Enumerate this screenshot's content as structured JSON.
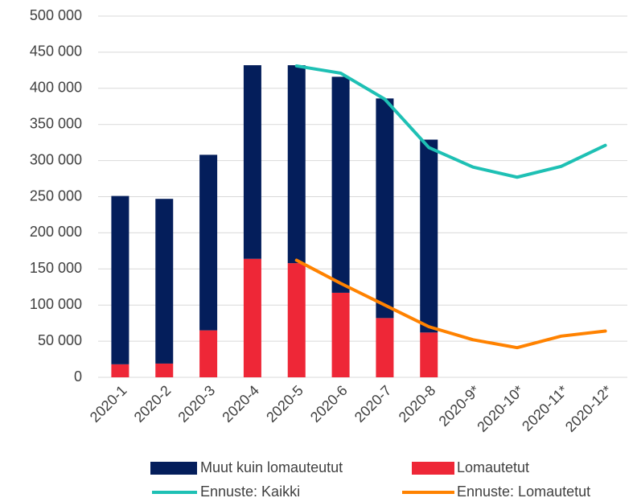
{
  "chart_data": {
    "type": "bar",
    "categories": [
      "2020-1",
      "2020-2",
      "2020-3",
      "2020-4",
      "2020-5",
      "2020-6",
      "2020-7",
      "2020-8",
      "2020-9*",
      "2020-10*",
      "2020-11*",
      "2020-12*"
    ],
    "series": [
      {
        "name": "Lomautetut",
        "type": "bar",
        "color": "#ee2737",
        "values": [
          18000,
          19000,
          65000,
          164000,
          158000,
          117000,
          82000,
          62000,
          null,
          null,
          null,
          null
        ]
      },
      {
        "name": "Muut kuin lomauteutut",
        "type": "bar",
        "color": "#041e5b",
        "values": [
          233000,
          228000,
          243000,
          268000,
          274000,
          299000,
          304000,
          267000,
          null,
          null,
          null,
          null
        ]
      },
      {
        "name": "Ennuste: Kaikki",
        "type": "line",
        "color": "#1ec0b4",
        "values": [
          null,
          null,
          null,
          null,
          431000,
          421000,
          385000,
          318000,
          291000,
          277000,
          292000,
          321000
        ]
      },
      {
        "name": "Ennuste: Lomautetut",
        "type": "line",
        "color": "#ff8200",
        "values": [
          null,
          null,
          null,
          null,
          162000,
          130000,
          100000,
          70000,
          52000,
          41000,
          57000,
          64000
        ]
      }
    ],
    "ylim": [
      0,
      500000
    ],
    "yticks": [
      0,
      {
        "value": 50000,
        "label": "50 000"
      },
      {
        "value": 100000,
        "label": "100 000"
      },
      {
        "value": 150000,
        "label": "150 000"
      },
      {
        "value": 200000,
        "label": "200 000"
      },
      {
        "value": 250000,
        "label": "250 000"
      },
      {
        "value": 300000,
        "label": "300 000"
      },
      {
        "value": 350000,
        "label": "350 000"
      },
      {
        "value": 400000,
        "label": "400 000"
      },
      {
        "value": 450000,
        "label": "450 000"
      },
      {
        "value": 500000,
        "label": "500 000"
      }
    ],
    "grid": true
  }
}
